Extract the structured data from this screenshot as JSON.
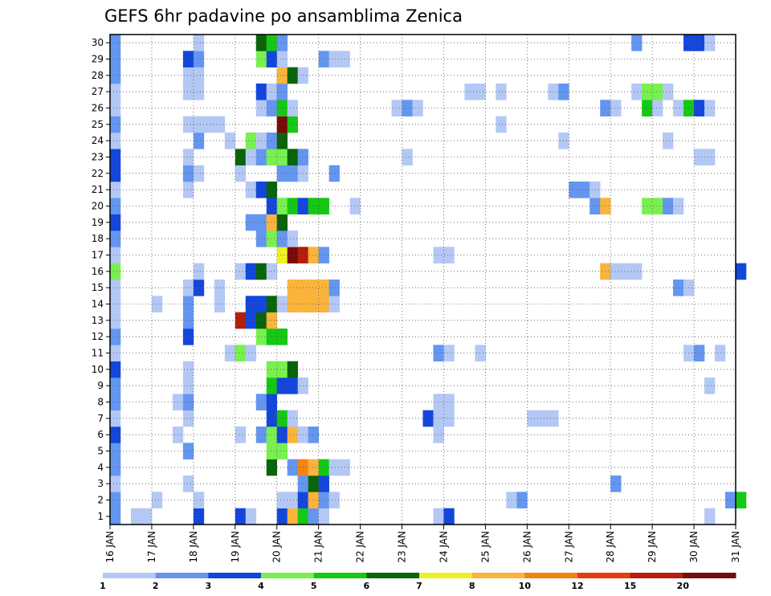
{
  "chart_data": {
    "type": "heatmap",
    "title": "GEFS 6hr padavine po ansamblima Zenica",
    "x_tick_labels": [
      "16 JAN",
      "17 JAN",
      "18 JAN",
      "19 JAN",
      "20 JAN",
      "21 JAN",
      "22 JAN",
      "23 JAN",
      "24 JAN",
      "25 JAN",
      "26 JAN",
      "27 JAN",
      "28 JAN",
      "29 JAN",
      "30 JAN",
      "31 JAN"
    ],
    "y_tick_labels": [
      "1",
      "2",
      "3",
      "4",
      "5",
      "6",
      "7",
      "8",
      "9",
      "10",
      "11",
      "12",
      "13",
      "14",
      "15",
      "16",
      "17",
      "18",
      "19",
      "20",
      "21",
      "22",
      "23",
      "24",
      "25",
      "26",
      "27",
      "28",
      "29",
      "30"
    ],
    "ylabel": "",
    "xlabel": "",
    "xlim": [
      "16 JAN 00Z",
      "31 JAN 00Z"
    ],
    "ylim": [
      0,
      30
    ],
    "time_step": "6hr",
    "grid": "dotted",
    "legend": {
      "placement": "bottom",
      "bins": [
        {
          "label": "1",
          "color": "#b4c8f5"
        },
        {
          "label": "2",
          "color": "#6496f0"
        },
        {
          "label": "3",
          "color": "#1446dc"
        },
        {
          "label": "4",
          "color": "#78f050"
        },
        {
          "label": "5",
          "color": "#14c814"
        },
        {
          "label": "6",
          "color": "#0a640a"
        },
        {
          "label": "7",
          "color": "#f0f01e"
        },
        {
          "label": "8",
          "color": "#fab43c"
        },
        {
          "label": "10",
          "color": "#f58214"
        },
        {
          "label": "12",
          "color": "#e63c0a"
        },
        {
          "label": "15",
          "color": "#b41e0a"
        },
        {
          "label": "20",
          "color": "#780a0a"
        }
      ]
    },
    "cells_note": "member, time_slot (0 = 16 JAN 00Z), color_level (1..12 legend bins)",
    "cells": [
      [
        1,
        0,
        2
      ],
      [
        1,
        2,
        1
      ],
      [
        1,
        3,
        1
      ],
      [
        1,
        8,
        3
      ],
      [
        1,
        12,
        3
      ],
      [
        1,
        13,
        1
      ],
      [
        1,
        16,
        3
      ],
      [
        1,
        17,
        8
      ],
      [
        1,
        18,
        5
      ],
      [
        1,
        19,
        2
      ],
      [
        1,
        20,
        1
      ],
      [
        1,
        31,
        1
      ],
      [
        1,
        32,
        3
      ],
      [
        1,
        57,
        1
      ],
      [
        2,
        0,
        2
      ],
      [
        2,
        4,
        1
      ],
      [
        2,
        8,
        1
      ],
      [
        2,
        16,
        1
      ],
      [
        2,
        17,
        1
      ],
      [
        2,
        18,
        3
      ],
      [
        2,
        19,
        8
      ],
      [
        2,
        20,
        2
      ],
      [
        2,
        21,
        1
      ],
      [
        2,
        38,
        1
      ],
      [
        2,
        39,
        2
      ],
      [
        2,
        59,
        2
      ],
      [
        2,
        60,
        5
      ],
      [
        3,
        0,
        1
      ],
      [
        3,
        7,
        1
      ],
      [
        3,
        18,
        2
      ],
      [
        3,
        19,
        6
      ],
      [
        3,
        20,
        3
      ],
      [
        3,
        48,
        2
      ],
      [
        4,
        0,
        2
      ],
      [
        4,
        15,
        6
      ],
      [
        4,
        17,
        2
      ],
      [
        4,
        18,
        9
      ],
      [
        4,
        19,
        8
      ],
      [
        4,
        20,
        5
      ],
      [
        4,
        21,
        1
      ],
      [
        4,
        22,
        1
      ],
      [
        5,
        0,
        2
      ],
      [
        5,
        7,
        2
      ],
      [
        5,
        15,
        4
      ],
      [
        5,
        16,
        4
      ],
      [
        6,
        0,
        3
      ],
      [
        6,
        6,
        1
      ],
      [
        6,
        12,
        1
      ],
      [
        6,
        14,
        2
      ],
      [
        6,
        15,
        4
      ],
      [
        6,
        16,
        3
      ],
      [
        6,
        17,
        8
      ],
      [
        6,
        18,
        1
      ],
      [
        6,
        19,
        2
      ],
      [
        6,
        31,
        1
      ],
      [
        7,
        0,
        1
      ],
      [
        7,
        7,
        1
      ],
      [
        7,
        15,
        3
      ],
      [
        7,
        16,
        5
      ],
      [
        7,
        17,
        1
      ],
      [
        7,
        30,
        3
      ],
      [
        7,
        31,
        1
      ],
      [
        7,
        32,
        1
      ],
      [
        7,
        40,
        1
      ],
      [
        7,
        41,
        1
      ],
      [
        7,
        42,
        1
      ],
      [
        8,
        0,
        2
      ],
      [
        8,
        6,
        1
      ],
      [
        8,
        7,
        2
      ],
      [
        8,
        14,
        2
      ],
      [
        8,
        15,
        3
      ],
      [
        8,
        31,
        1
      ],
      [
        8,
        32,
        1
      ],
      [
        9,
        0,
        2
      ],
      [
        9,
        7,
        1
      ],
      [
        9,
        15,
        5
      ],
      [
        9,
        16,
        3
      ],
      [
        9,
        17,
        3
      ],
      [
        9,
        18,
        1
      ],
      [
        9,
        57,
        1
      ],
      [
        10,
        0,
        3
      ],
      [
        10,
        7,
        1
      ],
      [
        10,
        15,
        4
      ],
      [
        10,
        16,
        4
      ],
      [
        10,
        17,
        6
      ],
      [
        11,
        0,
        1
      ],
      [
        11,
        11,
        1
      ],
      [
        11,
        12,
        4
      ],
      [
        11,
        13,
        1
      ],
      [
        11,
        31,
        2
      ],
      [
        11,
        32,
        1
      ],
      [
        11,
        35,
        1
      ],
      [
        11,
        55,
        1
      ],
      [
        11,
        56,
        2
      ],
      [
        11,
        58,
        1
      ],
      [
        12,
        0,
        2
      ],
      [
        12,
        7,
        3
      ],
      [
        12,
        14,
        4
      ],
      [
        12,
        15,
        5
      ],
      [
        12,
        16,
        5
      ],
      [
        13,
        0,
        1
      ],
      [
        13,
        7,
        2
      ],
      [
        13,
        12,
        11
      ],
      [
        13,
        13,
        3
      ],
      [
        13,
        14,
        6
      ],
      [
        13,
        15,
        8
      ],
      [
        14,
        0,
        1
      ],
      [
        14,
        4,
        1
      ],
      [
        14,
        7,
        2
      ],
      [
        14,
        10,
        1
      ],
      [
        14,
        13,
        3
      ],
      [
        14,
        14,
        3
      ],
      [
        14,
        15,
        6
      ],
      [
        14,
        16,
        1
      ],
      [
        14,
        17,
        8
      ],
      [
        14,
        18,
        8
      ],
      [
        14,
        19,
        8
      ],
      [
        14,
        20,
        8
      ],
      [
        14,
        21,
        1
      ],
      [
        15,
        0,
        1
      ],
      [
        15,
        7,
        1
      ],
      [
        15,
        8,
        3
      ],
      [
        15,
        10,
        1
      ],
      [
        15,
        17,
        8
      ],
      [
        15,
        18,
        8
      ],
      [
        15,
        19,
        8
      ],
      [
        15,
        20,
        8
      ],
      [
        15,
        21,
        2
      ],
      [
        15,
        54,
        2
      ],
      [
        15,
        55,
        1
      ],
      [
        16,
        0,
        4
      ],
      [
        16,
        8,
        1
      ],
      [
        16,
        12,
        1
      ],
      [
        16,
        13,
        3
      ],
      [
        16,
        14,
        6
      ],
      [
        16,
        15,
        1
      ],
      [
        16,
        47,
        8
      ],
      [
        16,
        48,
        1
      ],
      [
        16,
        49,
        1
      ],
      [
        16,
        50,
        1
      ],
      [
        16,
        60,
        3
      ],
      [
        17,
        0,
        1
      ],
      [
        17,
        16,
        7
      ],
      [
        17,
        17,
        12
      ],
      [
        17,
        18,
        11
      ],
      [
        17,
        19,
        8
      ],
      [
        17,
        20,
        2
      ],
      [
        17,
        31,
        1
      ],
      [
        17,
        32,
        1
      ],
      [
        18,
        0,
        2
      ],
      [
        18,
        14,
        2
      ],
      [
        18,
        15,
        4
      ],
      [
        18,
        16,
        2
      ],
      [
        18,
        17,
        1
      ],
      [
        19,
        0,
        3
      ],
      [
        19,
        13,
        2
      ],
      [
        19,
        14,
        2
      ],
      [
        19,
        15,
        8
      ],
      [
        19,
        16,
        6
      ],
      [
        20,
        0,
        2
      ],
      [
        20,
        15,
        3
      ],
      [
        20,
        16,
        4
      ],
      [
        20,
        17,
        5
      ],
      [
        20,
        18,
        3
      ],
      [
        20,
        19,
        5
      ],
      [
        20,
        20,
        5
      ],
      [
        20,
        23,
        1
      ],
      [
        20,
        46,
        2
      ],
      [
        20,
        47,
        8
      ],
      [
        20,
        51,
        4
      ],
      [
        20,
        52,
        4
      ],
      [
        20,
        53,
        2
      ],
      [
        20,
        54,
        1
      ],
      [
        21,
        0,
        1
      ],
      [
        21,
        7,
        1
      ],
      [
        21,
        13,
        1
      ],
      [
        21,
        14,
        3
      ],
      [
        21,
        15,
        6
      ],
      [
        21,
        44,
        2
      ],
      [
        21,
        45,
        2
      ],
      [
        21,
        46,
        1
      ],
      [
        22,
        0,
        3
      ],
      [
        22,
        7,
        2
      ],
      [
        22,
        8,
        1
      ],
      [
        22,
        12,
        1
      ],
      [
        22,
        16,
        2
      ],
      [
        22,
        17,
        2
      ],
      [
        22,
        18,
        1
      ],
      [
        22,
        21,
        2
      ],
      [
        23,
        0,
        3
      ],
      [
        23,
        7,
        1
      ],
      [
        23,
        12,
        6
      ],
      [
        23,
        13,
        1
      ],
      [
        23,
        14,
        2
      ],
      [
        23,
        15,
        4
      ],
      [
        23,
        16,
        4
      ],
      [
        23,
        17,
        6
      ],
      [
        23,
        18,
        2
      ],
      [
        23,
        28,
        1
      ],
      [
        23,
        56,
        1
      ],
      [
        23,
        57,
        1
      ],
      [
        24,
        0,
        1
      ],
      [
        24,
        8,
        2
      ],
      [
        24,
        11,
        1
      ],
      [
        24,
        13,
        4
      ],
      [
        24,
        14,
        1
      ],
      [
        24,
        15,
        2
      ],
      [
        24,
        16,
        6
      ],
      [
        24,
        43,
        1
      ],
      [
        24,
        53,
        1
      ],
      [
        25,
        0,
        2
      ],
      [
        25,
        7,
        1
      ],
      [
        25,
        8,
        1
      ],
      [
        25,
        9,
        1
      ],
      [
        25,
        10,
        1
      ],
      [
        25,
        16,
        12
      ],
      [
        25,
        17,
        5
      ],
      [
        25,
        37,
        1
      ],
      [
        26,
        0,
        1
      ],
      [
        26,
        14,
        1
      ],
      [
        26,
        15,
        2
      ],
      [
        26,
        16,
        5
      ],
      [
        26,
        17,
        1
      ],
      [
        26,
        27,
        1
      ],
      [
        26,
        28,
        2
      ],
      [
        26,
        29,
        1
      ],
      [
        26,
        47,
        2
      ],
      [
        26,
        48,
        1
      ],
      [
        26,
        51,
        5
      ],
      [
        26,
        52,
        1
      ],
      [
        26,
        54,
        1
      ],
      [
        26,
        55,
        5
      ],
      [
        26,
        56,
        3
      ],
      [
        26,
        57,
        1
      ],
      [
        27,
        0,
        1
      ],
      [
        27,
        7,
        1
      ],
      [
        27,
        8,
        1
      ],
      [
        27,
        14,
        3
      ],
      [
        27,
        15,
        1
      ],
      [
        27,
        16,
        2
      ],
      [
        27,
        34,
        1
      ],
      [
        27,
        35,
        1
      ],
      [
        27,
        37,
        1
      ],
      [
        27,
        42,
        1
      ],
      [
        27,
        43,
        2
      ],
      [
        27,
        50,
        1
      ],
      [
        27,
        51,
        4
      ],
      [
        27,
        52,
        4
      ],
      [
        27,
        53,
        1
      ],
      [
        28,
        0,
        2
      ],
      [
        28,
        7,
        1
      ],
      [
        28,
        8,
        1
      ],
      [
        28,
        16,
        8
      ],
      [
        28,
        17,
        6
      ],
      [
        28,
        18,
        1
      ],
      [
        29,
        0,
        2
      ],
      [
        29,
        7,
        3
      ],
      [
        29,
        8,
        2
      ],
      [
        29,
        14,
        4
      ],
      [
        29,
        15,
        3
      ],
      [
        29,
        16,
        1
      ],
      [
        29,
        20,
        2
      ],
      [
        29,
        21,
        1
      ],
      [
        29,
        22,
        1
      ],
      [
        30,
        0,
        2
      ],
      [
        30,
        8,
        1
      ],
      [
        30,
        14,
        6
      ],
      [
        30,
        15,
        5
      ],
      [
        30,
        16,
        2
      ],
      [
        30,
        50,
        2
      ],
      [
        30,
        55,
        3
      ],
      [
        30,
        56,
        3
      ],
      [
        30,
        57,
        1
      ]
    ]
  }
}
